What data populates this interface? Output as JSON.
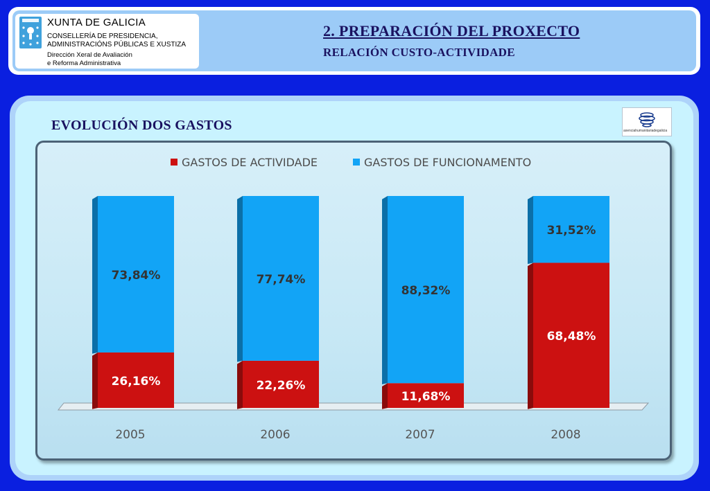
{
  "header": {
    "org_name": "XUNTA DE GALICIA",
    "org_lines": [
      "CONSELLERÍA DE PRESIDENCIA,",
      "ADMINISTRACIÓNS PÚBLICAS E XUSTIZA",
      "Dirección Xeral de Avaliación",
      "e Reforma Administrativa"
    ],
    "title": "2. PREPARACIÓN DEL PROXECTO",
    "subtitle": "RELACIÓN CUSTO-ACTIVIDADE"
  },
  "section_title": "EVOLUCIÓN DOS GASTOS",
  "agency_logo_text": "axenciahumanitariadegalicia",
  "colors": {
    "actividade": "#cc1111",
    "funcionamento": "#12a4f6",
    "background": "#0a1fe0"
  },
  "chart_data": {
    "type": "bar",
    "stacked": true,
    "percent_stacked": true,
    "categories": [
      "2005",
      "2006",
      "2007",
      "2008"
    ],
    "series": [
      {
        "name": "GASTOS DE ACTIVIDADE",
        "values": [
          26.16,
          22.26,
          11.68,
          68.48
        ],
        "labels": [
          "26,16%",
          "22,26%",
          "11,68%",
          "68,48%"
        ]
      },
      {
        "name": "GASTOS DE FUNCIONAMENTO",
        "values": [
          73.84,
          77.74,
          88.32,
          31.52
        ],
        "labels": [
          "73,84%",
          "77,74%",
          "88,32%",
          "31,52%"
        ]
      }
    ],
    "ylim": [
      0,
      100
    ],
    "legend": "top",
    "grid": false
  }
}
